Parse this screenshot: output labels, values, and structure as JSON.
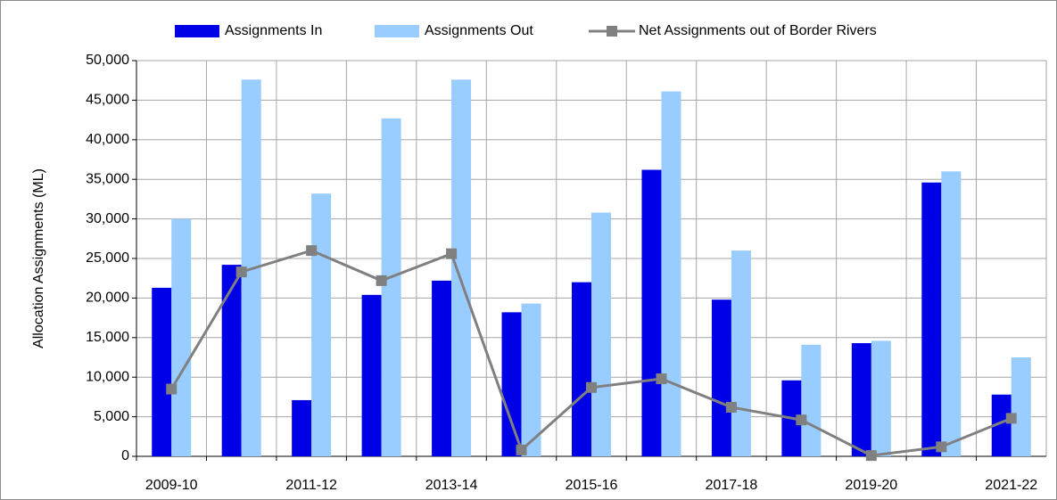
{
  "chart_data": {
    "type": "bar",
    "y_label": "Allocation Assignments (ML)",
    "categories": [
      "2009-10",
      null,
      "2011-12",
      null,
      "2013-14",
      null,
      "2015-16",
      null,
      "2017-18",
      null,
      "2019-20",
      null,
      "2021-22"
    ],
    "series": [
      {
        "name": "Assignments In",
        "type": "bar",
        "color": "#0000e6",
        "values": [
          21300,
          24200,
          7100,
          20400,
          22200,
          18200,
          22000,
          36200,
          19800,
          9600,
          14300,
          34600,
          7800
        ]
      },
      {
        "name": "Assignments Out",
        "type": "bar",
        "color": "#99ccff",
        "values": [
          30000,
          47600,
          33200,
          42700,
          47600,
          19300,
          30800,
          46100,
          26000,
          14100,
          14600,
          36000,
          12500
        ]
      },
      {
        "name": "Net Assignments out of Border Rivers",
        "type": "line",
        "color": "#808080",
        "values": [
          8500,
          23300,
          26000,
          22200,
          25600,
          800,
          8700,
          9800,
          6200,
          4600,
          100,
          1200,
          4800
        ]
      }
    ],
    "ylim": [
      0,
      50000
    ],
    "yticks": [
      0,
      {
        "value": 5000,
        "label": "5,000"
      },
      {
        "value": 10000,
        "label": "10,000"
      },
      {
        "value": 15000,
        "label": "15,000"
      },
      {
        "value": 20000,
        "label": "20,000"
      },
      {
        "value": 25000,
        "label": "25,000"
      },
      {
        "value": 30000,
        "label": "30,000"
      },
      {
        "value": 35000,
        "label": "35,000"
      },
      {
        "value": 40000,
        "label": "40,000"
      },
      {
        "value": 45000,
        "label": "45,000"
      },
      {
        "value": 50000,
        "label": "50,000"
      }
    ],
    "grid": true
  }
}
